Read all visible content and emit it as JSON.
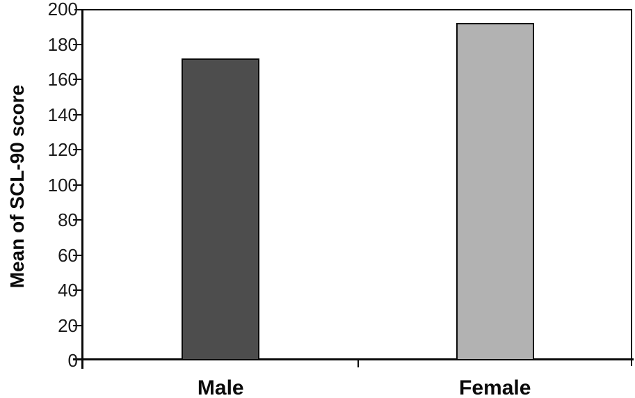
{
  "chart_data": {
    "type": "bar",
    "title": "",
    "xlabel": "",
    "ylabel": "Mean of SCL-90 score",
    "categories": [
      "Male",
      "Female"
    ],
    "values": [
      172,
      192
    ],
    "bar_colors": [
      "#4d4d4d",
      "#b2b2b2"
    ],
    "bar_border_color": "#0a0a0a",
    "ylim": [
      0,
      200
    ],
    "ytick_step": 20,
    "yticks": [
      "0",
      "20",
      "40",
      "60",
      "80",
      "100",
      "120",
      "140",
      "160",
      "180",
      "200"
    ],
    "grid": false,
    "legend": null,
    "axis_color": "#0a0a0a",
    "background_color": "#ffffff"
  }
}
